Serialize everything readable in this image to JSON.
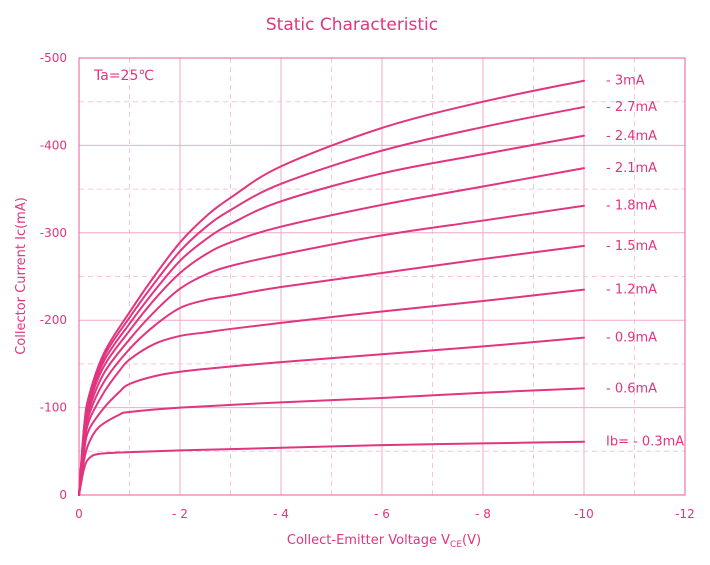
{
  "chart_data": {
    "type": "line",
    "title": "Static Characteristic",
    "annotation": "Ta=25℃",
    "xlabel_main": "Collect-Emitter Voltage   V",
    "xlabel_sub": "CE",
    "xlabel_unit": "(V)",
    "ylabel": "Collector  Current   Ic(mA)",
    "xlim": [
      0,
      -12
    ],
    "ylim": [
      0,
      -500
    ],
    "x_ticks": [
      0,
      -2,
      -4,
      -6,
      -8,
      -10,
      -12
    ],
    "x_tick_labels": [
      "0",
      "- 2",
      "- 4",
      "- 6",
      "- 8",
      "-10",
      "-12"
    ],
    "y_ticks": [
      0,
      -100,
      -200,
      -300,
      -400,
      -500
    ],
    "y_tick_labels": [
      "0",
      "-100",
      "-200",
      "-300",
      "-400",
      "-500"
    ],
    "grid": true,
    "colors": {
      "accent": "#e0357f",
      "grid": "#f2a9c8"
    },
    "series": [
      {
        "name": "Ib= - 0.3mA",
        "x": [
          0,
          -0.1,
          -0.2,
          -0.4,
          -1,
          -2,
          -4,
          -6,
          -8,
          -10
        ],
        "y": [
          0,
          -30,
          -42,
          -47,
          -49,
          -51,
          -54,
          -57,
          -59,
          -61
        ]
      },
      {
        "name": "- 0.6mA",
        "x": [
          0,
          -0.1,
          -0.2,
          -0.4,
          -0.8,
          -1,
          -2,
          -4,
          -6,
          -8,
          -10
        ],
        "y": [
          0,
          -40,
          -60,
          -78,
          -92,
          -95,
          -100,
          -106,
          -111,
          -117,
          -122
        ]
      },
      {
        "name": "- 0.9mA",
        "x": [
          0,
          -0.1,
          -0.2,
          -0.5,
          -0.8,
          -1,
          -1.5,
          -2,
          -3,
          -4,
          -6,
          -8,
          -10
        ],
        "y": [
          0,
          -50,
          -75,
          -100,
          -118,
          -127,
          -136,
          -141,
          -147,
          -152,
          -161,
          -170,
          -180
        ]
      },
      {
        "name": "- 1.2mA",
        "x": [
          0,
          -0.1,
          -0.2,
          -0.5,
          -0.8,
          -1,
          -1.5,
          -2,
          -2.5,
          -3,
          -4,
          -6,
          -8,
          -10
        ],
        "y": [
          0,
          -55,
          -85,
          -118,
          -142,
          -155,
          -173,
          -182,
          -186,
          -190,
          -197,
          -210,
          -222,
          -235
        ]
      },
      {
        "name": "- 1.5mA",
        "x": [
          0,
          -0.1,
          -0.2,
          -0.5,
          -1,
          -1.5,
          -2,
          -2.5,
          -3,
          -4,
          -6,
          -8,
          -10
        ],
        "y": [
          0,
          -60,
          -92,
          -130,
          -167,
          -194,
          -214,
          -223,
          -228,
          -238,
          -254,
          -270,
          -285
        ]
      },
      {
        "name": "- 1.8mA",
        "x": [
          0,
          -0.1,
          -0.2,
          -0.5,
          -1,
          -1.5,
          -2,
          -2.5,
          -3,
          -4,
          -6,
          -8,
          -10
        ],
        "y": [
          0,
          -65,
          -98,
          -140,
          -178,
          -210,
          -236,
          -252,
          -262,
          -275,
          -297,
          -314,
          -331
        ]
      },
      {
        "name": "- 2.1mA",
        "x": [
          0,
          -0.1,
          -0.2,
          -0.5,
          -1,
          -1.5,
          -2,
          -2.5,
          -3,
          -4,
          -6,
          -8,
          -10
        ],
        "y": [
          0,
          -70,
          -104,
          -148,
          -188,
          -224,
          -254,
          -275,
          -289,
          -307,
          -332,
          -353,
          -374
        ]
      },
      {
        "name": "- 2.4mA",
        "x": [
          0,
          -0.1,
          -0.2,
          -0.5,
          -1,
          -1.5,
          -2,
          -2.5,
          -3,
          -4,
          -6,
          -8,
          -10
        ],
        "y": [
          0,
          -73,
          -108,
          -154,
          -196,
          -234,
          -268,
          -292,
          -310,
          -336,
          -368,
          -390,
          -411
        ]
      },
      {
        "name": "- 2.7mA",
        "x": [
          0,
          -0.1,
          -0.2,
          -0.5,
          -1,
          -1.5,
          -2,
          -2.5,
          -3,
          -4,
          -6,
          -8,
          -10
        ],
        "y": [
          0,
          -76,
          -111,
          -159,
          -203,
          -243,
          -279,
          -306,
          -326,
          -356,
          -394,
          -421,
          -444
        ]
      },
      {
        "name": "- 3mA",
        "x": [
          0,
          -0.1,
          -0.2,
          -0.5,
          -1,
          -1.5,
          -2,
          -2.5,
          -3,
          -4,
          -6,
          -8,
          -10
        ],
        "y": [
          0,
          -78,
          -114,
          -163,
          -209,
          -251,
          -289,
          -318,
          -340,
          -376,
          -420,
          -450,
          -474
        ]
      }
    ]
  }
}
